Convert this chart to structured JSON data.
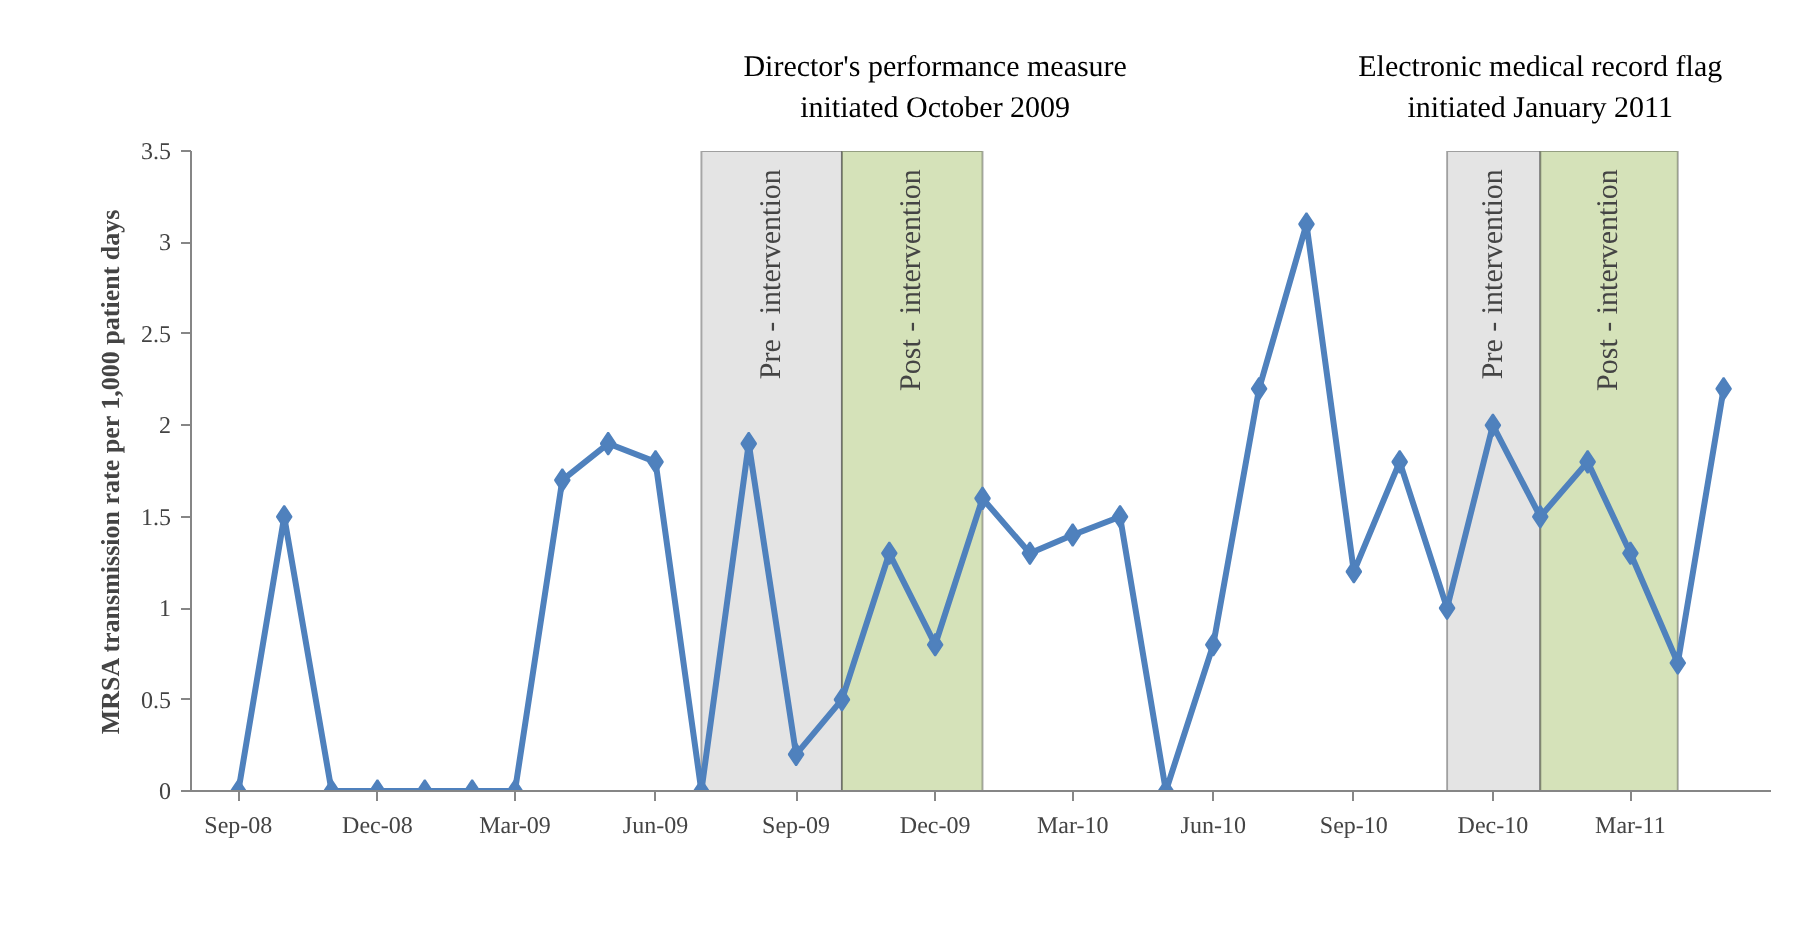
{
  "chart_data": {
    "type": "line",
    "ylabel": "MRSA transmission rate per 1,000 patient days",
    "x": [
      "2008-09",
      "2008-10",
      "2008-11",
      "2008-12",
      "2009-01",
      "2009-02",
      "2009-03",
      "2009-04",
      "2009-05",
      "2009-06",
      "2009-07",
      "2009-08",
      "2009-09",
      "2009-10",
      "2009-11",
      "2009-12",
      "2010-01",
      "2010-02",
      "2010-03",
      "2010-04",
      "2010-05",
      "2010-06",
      "2010-07",
      "2010-08",
      "2010-09",
      "2010-10",
      "2010-11",
      "2010-12",
      "2011-01",
      "2011-02",
      "2011-03",
      "2011-04",
      "2011-05"
    ],
    "series": [
      {
        "color": "#4f81bd",
        "values": [
          0,
          1.5,
          0,
          0,
          0,
          0,
          0,
          1.7,
          1.9,
          1.8,
          0,
          1.9,
          0.2,
          0.5,
          1.3,
          0.8,
          1.6,
          1.3,
          1.4,
          1.5,
          0,
          0.8,
          2.2,
          3.1,
          1.2,
          1.8,
          1.0,
          2.0,
          1.5,
          1.8,
          1.3,
          0.7,
          2.2
        ]
      }
    ],
    "marker": "diamond",
    "line_style": "solid",
    "xlim": [
      "2008-08",
      "2011-06"
    ],
    "xticks": [
      {
        "value": "2008-09",
        "label": "Sep-08"
      },
      {
        "value": "2008-12",
        "label": "Dec-08"
      },
      {
        "value": "2009-03",
        "label": "Mar-09"
      },
      {
        "value": "2009-06",
        "label": "Jun-09"
      },
      {
        "value": "2009-09",
        "label": "Sep-09"
      },
      {
        "value": "2009-12",
        "label": "Dec-09"
      },
      {
        "value": "2010-03",
        "label": "Mar-10"
      },
      {
        "value": "2010-06",
        "label": "Jun-10"
      },
      {
        "value": "2010-09",
        "label": "Sep-10"
      },
      {
        "value": "2010-12",
        "label": "Dec-10"
      },
      {
        "value": "2011-03",
        "label": "Mar-11"
      }
    ],
    "ylim": [
      0,
      3.5
    ],
    "yticks": [
      0,
      0.5,
      1,
      1.5,
      2,
      2.5,
      3,
      3.5
    ],
    "grid": false,
    "bands": [
      {
        "axis": "x",
        "from": "2009-07",
        "to": "2009-10",
        "label": "Pre - intervention",
        "color": "#d9d9d9"
      },
      {
        "axis": "x",
        "from": "2009-10",
        "to": "2010-01",
        "label": "Post - intervention",
        "color": "#c3d69b"
      },
      {
        "axis": "x",
        "from": "2010-11",
        "to": "2011-01",
        "label": "Pre - intervention",
        "color": "#d9d9d9"
      },
      {
        "axis": "x",
        "from": "2011-01",
        "to": "2011-04",
        "label": "Post - intervention",
        "color": "#c3d69b"
      }
    ],
    "annotations": [
      {
        "text": "Director's performance measure\ninitiated October 2009",
        "x": "2009-12",
        "y": 3.5
      },
      {
        "text": "Electronic medical record flag\ninitiated January 2011",
        "x": "2011-01",
        "y": 3.5
      }
    ]
  }
}
